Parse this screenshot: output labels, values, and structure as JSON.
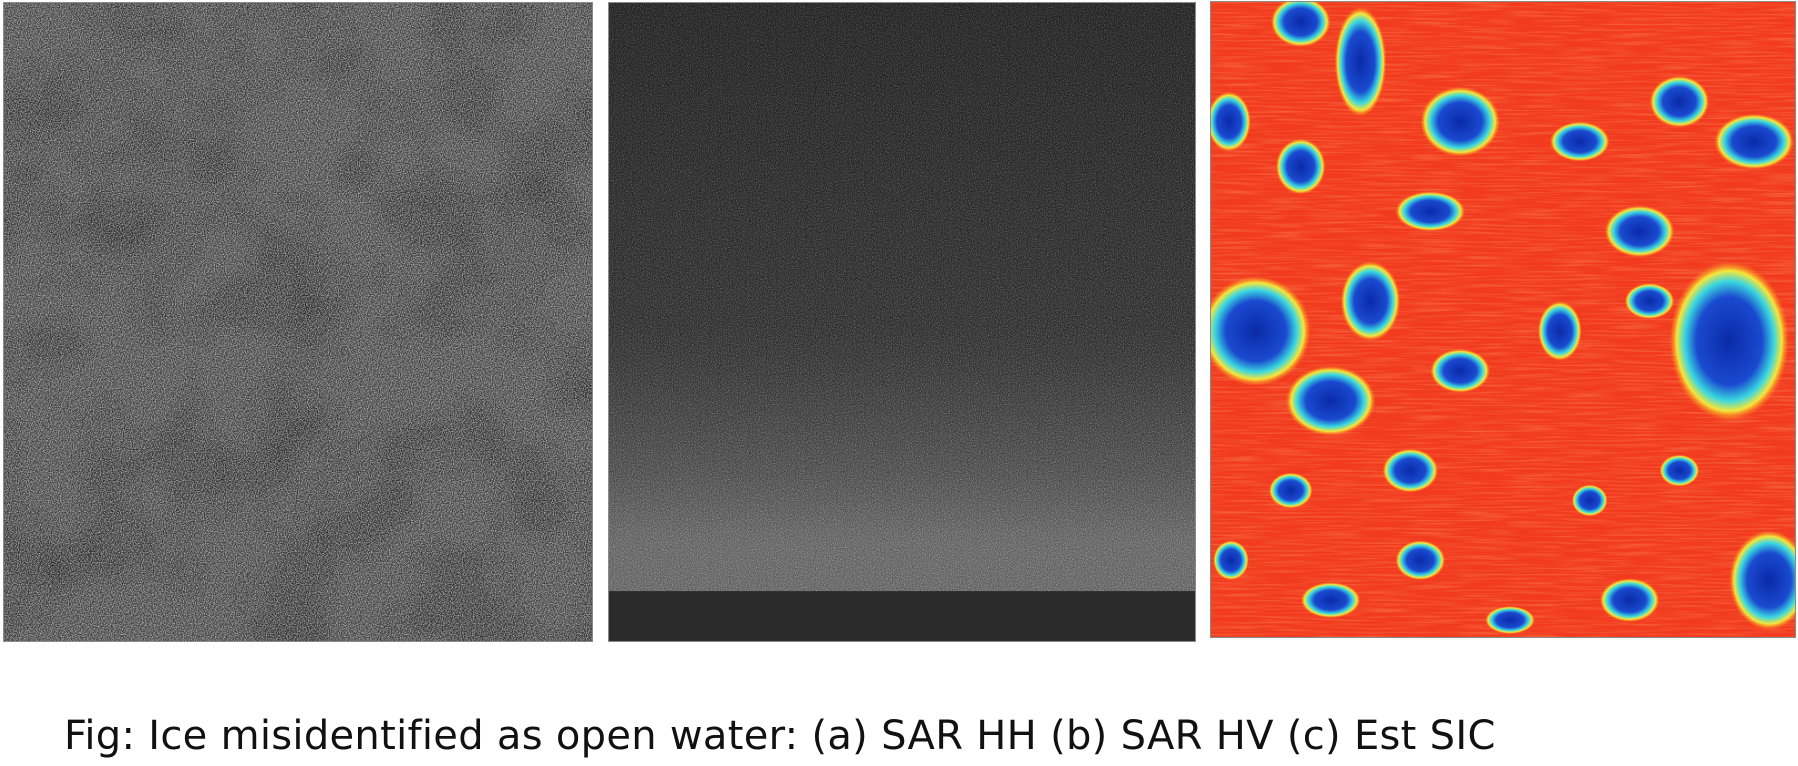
{
  "figure": {
    "caption": "Fig: Ice misidentified as open water: (a) SAR HH (b) SAR HV (c) Est SIC",
    "panels": [
      {
        "id": "a",
        "content": "SAR HH grayscale speckle image"
      },
      {
        "id": "b",
        "content": "SAR HV grayscale speckle image with dark band at bottom"
      },
      {
        "id": "c",
        "content": "Estimated sea ice concentration map, jet colormap (red high, blue low)"
      }
    ]
  },
  "colors": {
    "sar_dark": "#2e2e2e",
    "sar_light": "#d8d8d8",
    "sic_high": "#f23a1e",
    "sic_mid_orange": "#ff8a1a",
    "sic_mid_yellow": "#f5e63a",
    "sic_mid_cyan": "#3ad8e0",
    "sic_low": "#0a2aa8"
  }
}
